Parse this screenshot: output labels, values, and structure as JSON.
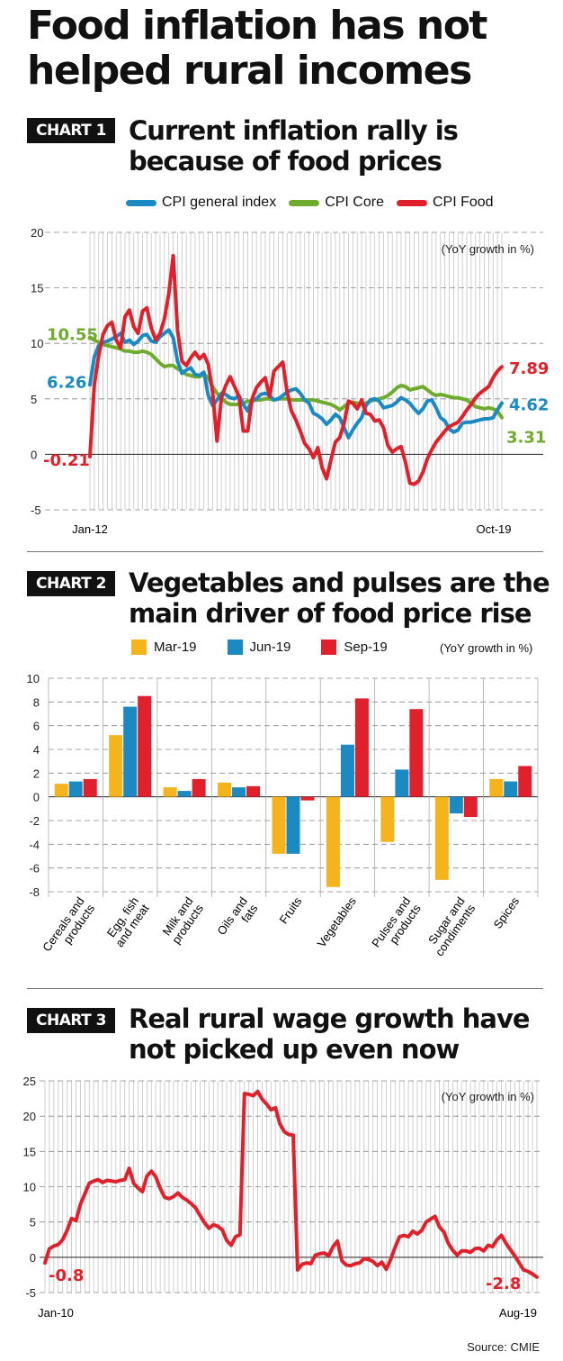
{
  "page": {
    "title": "Food inflation has not helped rural incomes",
    "source": "Source: CMIE"
  },
  "chart1": {
    "tag": "CHART 1",
    "title": "Current inflation rally is because of food prices",
    "unit_note": "(YoY growth in %)",
    "start_label": "Jan-12",
    "end_label": "Oct-19",
    "start_values": {
      "cpi_general": "6.26",
      "cpi_core": "10.55",
      "cpi_food": "-0.21"
    },
    "end_values": {
      "cpi_general": "4.62",
      "cpi_core": "3.31",
      "cpi_food": "7.89"
    }
  },
  "chart2": {
    "tag": "CHART 2",
    "title": "Vegetables and pulses are the main driver of food price rise",
    "unit_note": "(YoY growth in %)"
  },
  "chart3": {
    "tag": "CHART 3",
    "title": "Real rural wage growth have not picked up even now",
    "unit_note": "(YoY growth in %)",
    "start_label": "Jan-10",
    "end_label": "Aug-19",
    "start_value": "-0.8",
    "end_value": "-2.8"
  },
  "colors": {
    "cpi_general": "#1b8ac3",
    "cpi_core": "#6fac2e",
    "cpi_food": "#e0202a",
    "mar19": "#f5b31c",
    "jun19": "#1b8ac3",
    "sep19": "#e0202a",
    "wage": "#e0202a"
  },
  "chart_data": [
    {
      "type": "line",
      "title": "Current inflation rally is because of food prices",
      "ylabel": "(YoY growth in %)",
      "ylim": [
        -5,
        20
      ],
      "yticks": [
        -5,
        0,
        5,
        10,
        15,
        20
      ],
      "x_start": "Jan-12",
      "x_end": "Oct-19",
      "grid": true,
      "legend": "top",
      "series": [
        {
          "name": "CPI general index",
          "color": "#1b8ac3",
          "values": [
            6.26,
            8.8,
            9.8,
            10.1,
            10.2,
            10.4,
            10.6,
            10.9,
            10.1,
            10.3,
            9.9,
            10.2,
            10.7,
            10.8,
            10.2,
            10.1,
            10.6,
            10.9,
            11.2,
            10.5,
            8.4,
            7.3,
            7.6,
            7.8,
            7.2,
            7.1,
            7.4,
            5.3,
            4.4,
            4.9,
            5.5,
            5.4,
            5.1,
            5.0,
            5.3,
            4.5,
            3.9,
            4.9,
            5.0,
            5.4,
            5.5,
            5.3,
            4.9,
            5.0,
            5.3,
            5.6,
            5.8,
            5.9,
            5.5,
            4.9,
            4.6,
            3.7,
            3.5,
            3.2,
            2.7,
            3.1,
            3.6,
            3.3,
            2.4,
            1.5,
            2.2,
            2.8,
            3.3,
            4.4,
            4.9,
            5.0,
            4.8,
            4.2,
            4.3,
            4.4,
            4.7,
            5.1,
            4.9,
            4.6,
            4.1,
            3.7,
            4.1,
            4.8,
            4.9,
            4.2,
            3.3,
            3.0,
            2.3,
            2.0,
            2.2,
            2.8,
            2.9,
            2.9,
            3.0,
            3.1,
            3.2,
            3.2,
            3.3,
            4.0,
            4.62
          ]
        },
        {
          "name": "CPI Core",
          "color": "#6fac2e",
          "values": [
            10.55,
            10.3,
            10.1,
            9.9,
            9.8,
            9.7,
            9.6,
            9.5,
            9.3,
            9.3,
            9.2,
            9.2,
            9.3,
            9.2,
            9.0,
            8.6,
            8.2,
            7.9,
            8.0,
            8.0,
            7.7,
            7.5,
            7.2,
            7.1,
            7.0,
            7.0,
            7.2,
            6.9,
            6.1,
            5.5,
            5.1,
            4.7,
            4.5,
            4.5,
            4.5,
            4.6,
            4.8,
            4.8,
            4.9,
            4.9,
            5.0,
            5.0,
            4.9,
            5.0,
            5.0,
            5.0,
            4.9,
            4.9,
            4.9,
            4.9,
            4.9,
            4.9,
            4.8,
            4.7,
            4.6,
            4.5,
            4.3,
            4.0,
            4.3,
            4.6,
            4.7,
            4.6,
            4.5,
            4.6,
            4.8,
            4.9,
            5.0,
            5.1,
            5.3,
            5.6,
            6.0,
            6.2,
            6.1,
            5.8,
            5.9,
            6.0,
            6.1,
            5.8,
            5.5,
            5.3,
            5.4,
            5.3,
            5.2,
            5.1,
            5.1,
            5.0,
            4.9,
            4.6,
            4.3,
            4.2,
            4.1,
            4.2,
            4.1,
            3.9,
            3.31
          ]
        },
        {
          "name": "CPI Food",
          "color": "#e0202a",
          "values": [
            -0.21,
            6.3,
            8.9,
            10.8,
            11.6,
            11.9,
            10.3,
            9.6,
            12.4,
            13.0,
            11.5,
            10.9,
            12.9,
            13.2,
            11.4,
            10.3,
            10.9,
            12.2,
            14.5,
            17.9,
            11.2,
            8.4,
            8.0,
            8.7,
            9.2,
            8.6,
            9.0,
            8.1,
            5.6,
            1.2,
            5.1,
            6.2,
            7.0,
            6.1,
            5.2,
            2.1,
            2.1,
            5.0,
            6.0,
            6.5,
            6.9,
            5.2,
            7.5,
            7.9,
            8.3,
            5.6,
            3.9,
            3.1,
            2.1,
            1.0,
            0.5,
            -0.3,
            0.6,
            -1.2,
            -2.2,
            -0.5,
            1.1,
            1.5,
            2.8,
            4.8,
            4.6,
            4.1,
            4.9,
            3.7,
            3.6,
            3.0,
            3.1,
            2.4,
            0.8,
            0.2,
            0.5,
            0.7,
            -0.7,
            -2.6,
            -2.7,
            -2.4,
            -1.6,
            -0.4,
            0.4,
            1.1,
            1.6,
            2.1,
            2.5,
            2.7,
            2.9,
            3.4,
            4.0,
            4.5,
            5.1,
            5.5,
            5.8,
            6.1,
            6.9,
            7.5,
            7.89
          ]
        }
      ]
    },
    {
      "type": "bar",
      "title": "Vegetables and pulses are the main driver of food price rise",
      "ylabel": "(YoY growth in %)",
      "ylim": [
        -8,
        10
      ],
      "yticks": [
        -8,
        -6,
        -4,
        -2,
        0,
        2,
        4,
        6,
        8,
        10
      ],
      "grid": true,
      "legend": "top",
      "categories": [
        "Cereals and products",
        "Egg, fish and meat",
        "Milk and products",
        "Oils and fats",
        "Fruits",
        "Vegetables",
        "Pulses and products",
        "Sugar and condiments",
        "Spices"
      ],
      "series": [
        {
          "name": "Mar-19",
          "color": "#f5b31c",
          "values": [
            1.1,
            5.2,
            0.8,
            1.2,
            -4.8,
            -7.6,
            -3.8,
            -7.0,
            1.5
          ]
        },
        {
          "name": "Jun-19",
          "color": "#1b8ac3",
          "values": [
            1.3,
            7.6,
            0.5,
            0.8,
            -4.8,
            4.4,
            2.3,
            -1.4,
            1.3
          ]
        },
        {
          "name": "Sep-19",
          "color": "#e0202a",
          "values": [
            1.5,
            8.5,
            1.5,
            0.9,
            -0.3,
            8.3,
            7.4,
            -1.7,
            2.6
          ]
        }
      ]
    },
    {
      "type": "line",
      "title": "Real rural wage growth have not picked up even now",
      "ylabel": "(YoY growth in %)",
      "ylim": [
        -5,
        25
      ],
      "yticks": [
        -5,
        0,
        5,
        10,
        15,
        20,
        25
      ],
      "x_start": "Jan-10",
      "x_end": "Aug-19",
      "grid": true,
      "series": [
        {
          "name": "Real rural wage growth",
          "color": "#e0202a",
          "values": [
            -0.8,
            1.2,
            1.6,
            1.8,
            2.5,
            3.8,
            5.5,
            5.2,
            7.5,
            9.0,
            10.5,
            10.8,
            11.0,
            10.6,
            10.9,
            10.8,
            10.7,
            10.9,
            11.0,
            12.6,
            10.5,
            9.8,
            9.3,
            11.5,
            12.2,
            11.4,
            9.8,
            8.5,
            8.3,
            8.6,
            9.1,
            8.5,
            8.1,
            7.6,
            7.0,
            5.9,
            4.9,
            4.1,
            4.6,
            4.4,
            3.9,
            2.4,
            1.7,
            2.9,
            3.2,
            23.2,
            23.1,
            22.9,
            23.5,
            22.4,
            21.7,
            20.9,
            21.2,
            18.9,
            17.8,
            17.4,
            17.3,
            -1.8,
            -1.0,
            -0.8,
            -0.9,
            0.3,
            0.5,
            0.6,
            0.2,
            1.5,
            2.3,
            -0.5,
            -1.1,
            -1.2,
            -0.9,
            -0.8,
            -0.2,
            -0.3,
            -0.6,
            -1.2,
            -0.7,
            -1.7,
            -0.3,
            1.4,
            2.9,
            3.1,
            2.9,
            3.7,
            3.3,
            3.8,
            5.0,
            5.4,
            5.8,
            4.3,
            3.6,
            2.0,
            1.0,
            0.3,
            0.9,
            0.9,
            0.7,
            1.2,
            1.3,
            0.9,
            1.7,
            1.5,
            2.5,
            3.1,
            2.0,
            1.1,
            0.2,
            -0.8,
            -1.8,
            -2.0,
            -2.4,
            -2.8
          ]
        }
      ]
    }
  ]
}
